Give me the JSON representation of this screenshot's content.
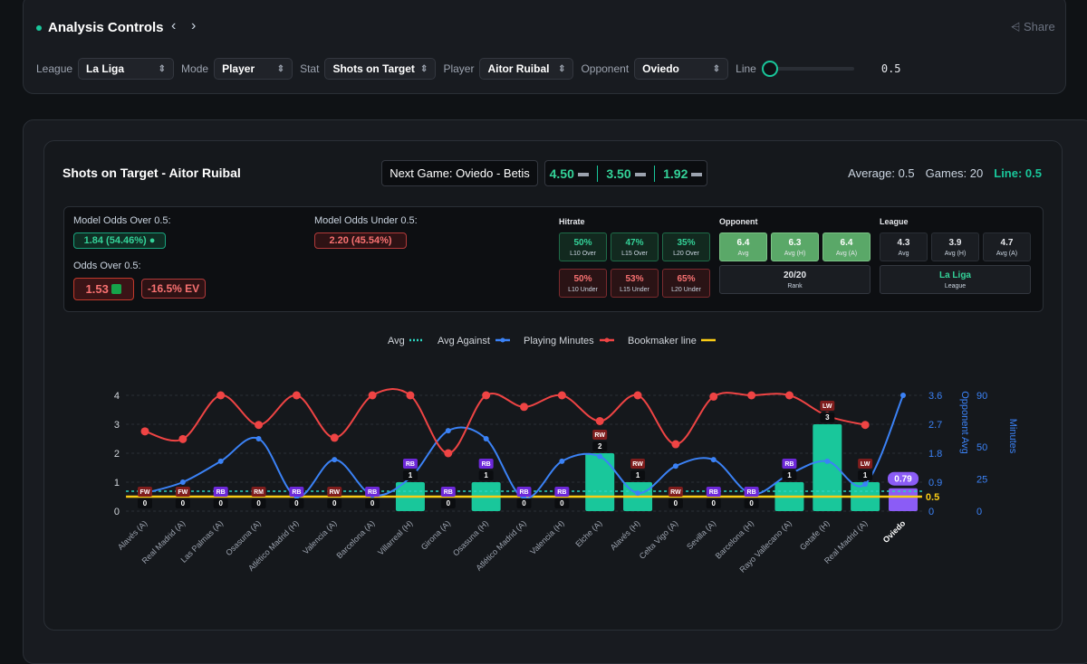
{
  "header": {
    "title": "Analysis Controls",
    "share": "Share"
  },
  "controls": [
    {
      "label": "League",
      "value": "La Liga"
    },
    {
      "label": "Mode",
      "value": "Player"
    },
    {
      "label": "Stat",
      "value": "Shots on Target"
    },
    {
      "label": "Player",
      "value": "Aitor Ruibal"
    },
    {
      "label": "Opponent",
      "value": "Oviedo"
    }
  ],
  "line_control": {
    "label": "Line",
    "value": 0.5
  },
  "card": {
    "title": "Shots on Target - Aitor Ruibal",
    "next_game": "Next Game: Oviedo - Betis",
    "odds": [
      "4.50",
      "3.50",
      "1.92"
    ],
    "average": "Average: 0.5",
    "games": "Games: 20",
    "line": "Line: 0.5"
  },
  "odds_box": {
    "model_over_label": "Model Odds Over 0.5:",
    "model_over": "1.84 (54.46%)",
    "model_under_label": "Model Odds Under 0.5:",
    "model_under": "2.20 (45.54%)",
    "odds_over_label": "Odds Over 0.5:",
    "odds_over": "1.53",
    "ev": "-16.5% EV"
  },
  "hitrate": {
    "title": "Hitrate",
    "over": [
      {
        "value": "50%",
        "label": "L10 Over"
      },
      {
        "value": "47%",
        "label": "L15 Over"
      },
      {
        "value": "35%",
        "label": "L20 Over"
      }
    ],
    "under": [
      {
        "value": "50%",
        "label": "L10 Under"
      },
      {
        "value": "53%",
        "label": "L15 Under"
      },
      {
        "value": "65%",
        "label": "L20 Under"
      }
    ]
  },
  "opponent": {
    "title": "Opponent",
    "stats": [
      {
        "value": "6.4",
        "label": "Avg"
      },
      {
        "value": "6.3",
        "label": "Avg (H)"
      },
      {
        "value": "6.4",
        "label": "Avg (A)"
      }
    ],
    "rank": {
      "value": "20/20",
      "label": "Rank"
    }
  },
  "league": {
    "title": "League",
    "stats": [
      {
        "value": "4.3",
        "label": "Avg"
      },
      {
        "value": "3.9",
        "label": "Avg (H)"
      },
      {
        "value": "4.7",
        "label": "Avg (A)"
      }
    ],
    "name": {
      "value": "La Liga",
      "label": "League"
    }
  },
  "chart_data": {
    "type": "bar",
    "categories": [
      "Alavés (A)",
      "Real Madrid (A)",
      "Las Palmas (A)",
      "Osasuna (A)",
      "Atlético Madrid (H)",
      "Valencia (A)",
      "Barcelona (A)",
      "Villarreal (H)",
      "Girona (A)",
      "Osasuna (H)",
      "Atlético Madrid (A)",
      "Valencia (H)",
      "Elche (A)",
      "Alavés (H)",
      "Celta Vigo (A)",
      "Sevilla (A)",
      "Barcelona (H)",
      "Rayo Vallecano (A)",
      "Getafe (H)",
      "Real Madrid (A)",
      "Oviedo"
    ],
    "values": [
      0,
      0,
      0,
      0,
      0,
      0,
      0,
      1,
      0,
      1,
      0,
      0,
      2,
      1,
      0,
      0,
      0,
      1,
      3,
      1,
      0.79
    ],
    "colors": [
      "#19c79b",
      "#19c79b",
      "#19c79b",
      "#19c79b",
      "#19c79b",
      "#19c79b",
      "#19c79b",
      "#19c79b",
      "#19c79b",
      "#19c79b",
      "#19c79b",
      "#19c79b",
      "#19c79b",
      "#19c79b",
      "#19c79b",
      "#19c79b",
      "#19c79b",
      "#19c79b",
      "#19c79b",
      "#19c79b",
      "#8b5cf6"
    ],
    "positions": [
      "FW",
      "FW",
      "RB",
      "RM",
      "RB",
      "RW",
      "RB",
      "RB",
      "RB",
      "RB",
      "RB",
      "RB",
      "RW",
      "RW",
      "RW",
      "RB",
      "RB",
      "RB",
      "LW",
      "LW",
      null
    ],
    "avg": {
      "name": "Avg",
      "value": 0.5,
      "color": "#2dd4bf"
    },
    "bookmaker_line": {
      "name": "Bookmaker line",
      "value": 0.5,
      "color": "#facc15"
    },
    "series": [
      {
        "name": "Avg Against",
        "color": "#3b82f6",
        "axis": "y2",
        "values": [
          0.56,
          0.9,
          1.55,
          2.25,
          0.45,
          1.6,
          0.5,
          1.04,
          2.5,
          2.25,
          0.4,
          1.55,
          1.7,
          0.56,
          1.4,
          1.6,
          0.53,
          1.15,
          1.55,
          0.84,
          3.6
        ]
      },
      {
        "name": "Playing Minutes",
        "color": "#ef4444",
        "axis": "y3",
        "values": [
          62,
          56,
          90,
          67,
          90,
          57,
          90,
          90,
          45,
          90,
          81,
          90,
          70,
          90,
          52,
          89,
          90,
          90,
          74,
          67,
          null
        ]
      }
    ],
    "ylim": [
      0,
      4
    ],
    "yticks": [
      0,
      1,
      2,
      3,
      4
    ],
    "y2label": "Opponent Avg",
    "y2lim": [
      0,
      3.6
    ],
    "y2ticks": [
      0,
      0.9,
      1.8,
      2.7,
      3.6
    ],
    "y3label": "Minutes",
    "y3lim": [
      0,
      90
    ],
    "y3ticks": [
      0,
      25,
      50,
      90
    ],
    "grid": true
  }
}
